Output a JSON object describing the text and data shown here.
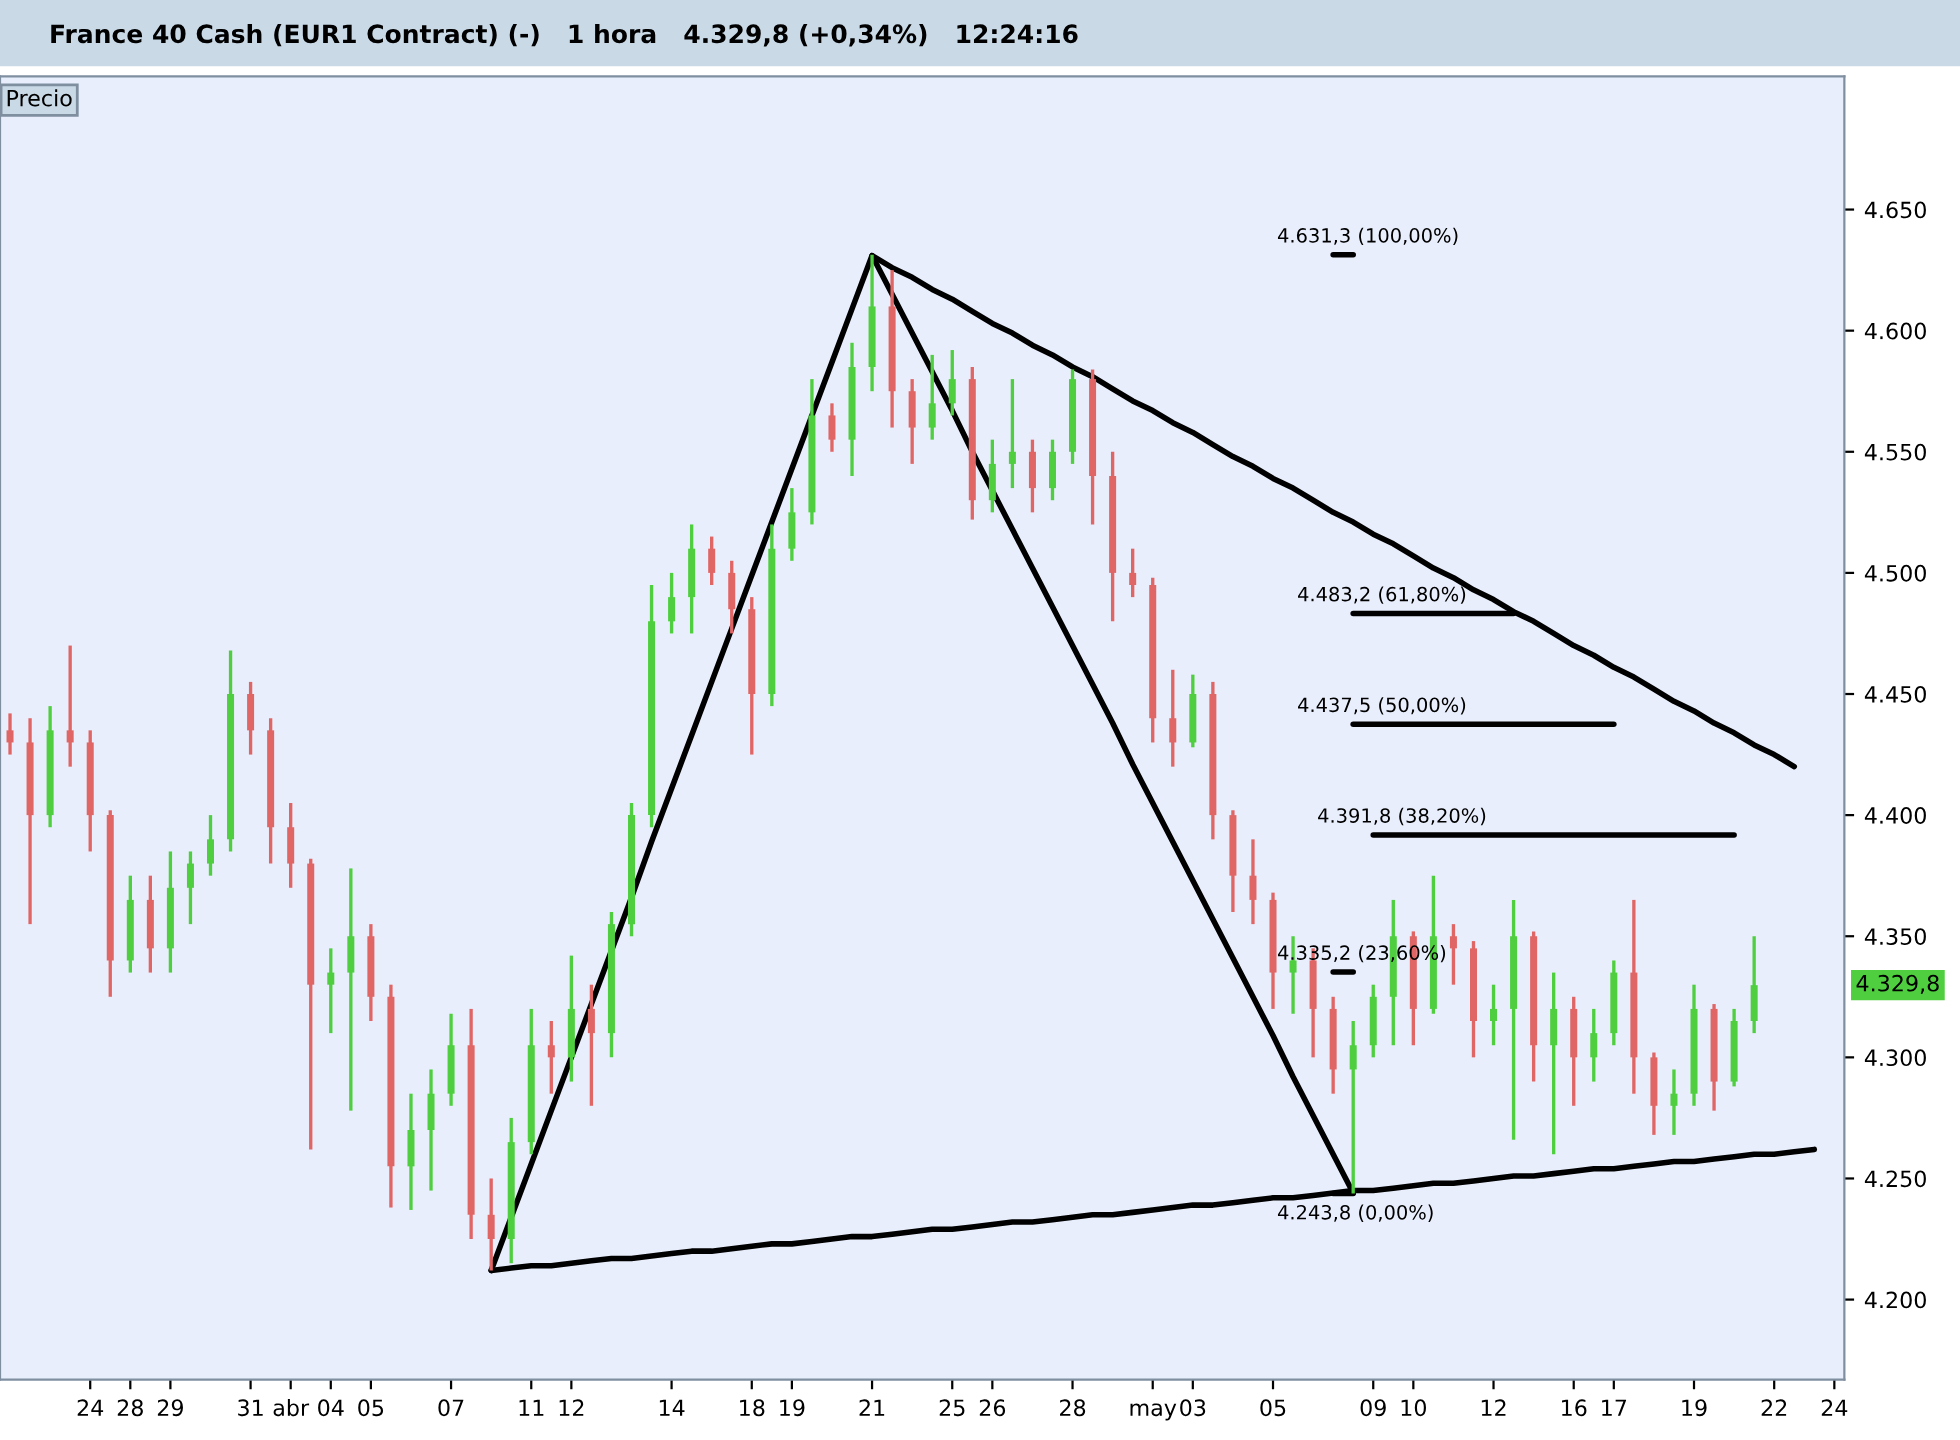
{
  "chart_data": {
    "type": "candlestick",
    "title": "France 40 Cash (EUR1 Contract) (-)   1 hora   4.329,8 (+0,34%)   12:24:16",
    "legend": false,
    "categories": [
      null,
      null,
      null,
      null,
      "24",
      null,
      "28",
      null,
      "29",
      null,
      null,
      null,
      "31",
      null,
      "abr",
      null,
      "04",
      null,
      "05",
      null,
      null,
      null,
      "07",
      null,
      null,
      null,
      "11",
      null,
      "12",
      null,
      null,
      null,
      null,
      "14",
      null,
      null,
      null,
      "18",
      null,
      "19",
      null,
      null,
      null,
      "21",
      null,
      null,
      null,
      "25",
      null,
      "26",
      null,
      null,
      null,
      "28",
      null,
      null,
      null,
      "may",
      null,
      "03",
      null,
      null,
      null,
      "05",
      null,
      null,
      null,
      null,
      "09",
      null,
      "10",
      null,
      null,
      null,
      "12",
      null,
      null,
      null,
      "16",
      null,
      "17",
      null,
      null,
      null,
      "19",
      null,
      null,
      null,
      "22",
      null,
      null,
      "24"
    ],
    "colors": [
      "#e06666",
      "#e06666",
      "#4fcf3f",
      "#e06666",
      "#e06666",
      "#e06666",
      "#4fcf3f",
      "#e06666",
      "#4fcf3f",
      "#4fcf3f",
      "#4fcf3f",
      "#4fcf3f",
      "#e06666",
      "#e06666",
      "#e06666",
      "#e06666",
      "#4fcf3f",
      "#4fcf3f",
      "#e06666",
      "#e06666",
      "#4fcf3f",
      "#4fcf3f",
      "#4fcf3f",
      "#e06666",
      "#e06666",
      "#4fcf3f",
      "#4fcf3f",
      "#e06666",
      "#4fcf3f",
      "#e06666",
      "#4fcf3f",
      "#4fcf3f",
      "#4fcf3f",
      "#4fcf3f",
      "#4fcf3f",
      "#e06666",
      "#e06666",
      "#e06666",
      "#4fcf3f",
      "#4fcf3f",
      "#4fcf3f",
      "#e06666",
      "#4fcf3f",
      "#4fcf3f",
      "#e06666",
      "#e06666",
      "#4fcf3f",
      "#4fcf3f",
      "#e06666",
      "#4fcf3f",
      "#4fcf3f",
      "#e06666",
      "#4fcf3f",
      "#4fcf3f",
      "#e06666",
      "#e06666",
      "#e06666",
      "#e06666",
      "#e06666",
      "#4fcf3f",
      "#e06666",
      "#e06666",
      "#e06666",
      "#e06666",
      "#4fcf3f",
      "#e06666",
      "#e06666",
      "#4fcf3f",
      "#4fcf3f",
      "#4fcf3f",
      "#e06666",
      "#4fcf3f",
      "#e06666",
      "#e06666",
      "#4fcf3f",
      "#4fcf3f",
      "#e06666",
      "#4fcf3f",
      "#e06666",
      "#4fcf3f",
      "#4fcf3f",
      "#e06666",
      "#e06666",
      "#4fcf3f",
      "#4fcf3f",
      "#e06666",
      "#4fcf3f",
      "#4fcf3f",
      null,
      null,
      null,
      null
    ],
    "ohlc": [
      [
        4435,
        4442,
        4425,
        4430
      ],
      [
        4430,
        4440,
        4355,
        4400
      ],
      [
        4400,
        4445,
        4395,
        4435
      ],
      [
        4435,
        4470,
        4420,
        4430
      ],
      [
        4430,
        4435,
        4385,
        4400
      ],
      [
        4400,
        4402,
        4325,
        4340
      ],
      [
        4340,
        4375,
        4335,
        4365
      ],
      [
        4365,
        4375,
        4335,
        4345
      ],
      [
        4345,
        4385,
        4335,
        4370
      ],
      [
        4370,
        4385,
        4355,
        4380
      ],
      [
        4380,
        4400,
        4375,
        4390
      ],
      [
        4390,
        4468,
        4385,
        4450
      ],
      [
        4450,
        4455,
        4425,
        4435
      ],
      [
        4435,
        4440,
        4380,
        4395
      ],
      [
        4395,
        4405,
        4370,
        4380
      ],
      [
        4380,
        4382,
        4262,
        4330
      ],
      [
        4330,
        4345,
        4310,
        4335
      ],
      [
        4335,
        4378,
        4278,
        4350
      ],
      [
        4350,
        4355,
        4315,
        4325
      ],
      [
        4325,
        4330,
        4238,
        4255
      ],
      [
        4255,
        4285,
        4237,
        4270
      ],
      [
        4270,
        4295,
        4245,
        4285
      ],
      [
        4285,
        4318,
        4280,
        4305
      ],
      [
        4305,
        4320,
        4225,
        4235
      ],
      [
        4235,
        4250,
        4212,
        4225
      ],
      [
        4225,
        4275,
        4215,
        4265
      ],
      [
        4265,
        4320,
        4260,
        4305
      ],
      [
        4305,
        4315,
        4285,
        4300
      ],
      [
        4300,
        4342,
        4290,
        4320
      ],
      [
        4320,
        4330,
        4280,
        4310
      ],
      [
        4310,
        4360,
        4300,
        4355
      ],
      [
        4355,
        4405,
        4350,
        4400
      ],
      [
        4400,
        4495,
        4395,
        4480
      ],
      [
        4480,
        4500,
        4475,
        4490
      ],
      [
        4490,
        4520,
        4475,
        4510
      ],
      [
        4510,
        4515,
        4495,
        4500
      ],
      [
        4500,
        4505,
        4475,
        4485
      ],
      [
        4485,
        4490,
        4425,
        4450
      ],
      [
        4450,
        4520,
        4445,
        4510
      ],
      [
        4510,
        4535,
        4505,
        4525
      ],
      [
        4525,
        4580,
        4520,
        4565
      ],
      [
        4565,
        4570,
        4550,
        4555
      ],
      [
        4555,
        4595,
        4540,
        4585
      ],
      [
        4585,
        4631.3,
        4575,
        4610
      ],
      [
        4610,
        4625,
        4560,
        4575
      ],
      [
        4575,
        4580,
        4545,
        4560
      ],
      [
        4560,
        4590,
        4555,
        4570
      ],
      [
        4570,
        4592,
        4565,
        4580
      ],
      [
        4580,
        4585,
        4522,
        4530
      ],
      [
        4530,
        4555,
        4525,
        4545
      ],
      [
        4545,
        4580,
        4535,
        4550
      ],
      [
        4550,
        4555,
        4525,
        4535
      ],
      [
        4535,
        4555,
        4530,
        4550
      ],
      [
        4550,
        4584,
        4545,
        4580
      ],
      [
        4580,
        4584,
        4520,
        4540
      ],
      [
        4540,
        4550,
        4480,
        4500
      ],
      [
        4500,
        4510,
        4490,
        4495
      ],
      [
        4495,
        4498,
        4430,
        4440
      ],
      [
        4440,
        4460,
        4420,
        4430
      ],
      [
        4430,
        4458,
        4428,
        4450
      ],
      [
        4450,
        4455,
        4390,
        4400
      ],
      [
        4400,
        4402,
        4360,
        4375
      ],
      [
        4375,
        4390,
        4355,
        4365
      ],
      [
        4365,
        4368,
        4320,
        4335
      ],
      [
        4335,
        4350,
        4318,
        4340
      ],
      [
        4340,
        4345,
        4300,
        4320
      ],
      [
        4320,
        4325,
        4285,
        4295
      ],
      [
        4295,
        4315,
        4243.8,
        4305
      ],
      [
        4305,
        4330,
        4300,
        4325
      ],
      [
        4325,
        4365,
        4305,
        4350
      ],
      [
        4350,
        4352,
        4305,
        4320
      ],
      [
        4320,
        4375,
        4318,
        4350
      ],
      [
        4350,
        4355,
        4330,
        4345
      ],
      [
        4345,
        4348,
        4300,
        4315
      ],
      [
        4315,
        4330,
        4305,
        4320
      ],
      [
        4320,
        4365,
        4266,
        4350
      ],
      [
        4350,
        4352,
        4290,
        4305
      ],
      [
        4305,
        4335,
        4260,
        4320
      ],
      [
        4320,
        4325,
        4280,
        4300
      ],
      [
        4300,
        4320,
        4290,
        4310
      ],
      [
        4310,
        4340,
        4305,
        4335
      ],
      [
        4335,
        4365,
        4285,
        4300
      ],
      [
        4300,
        4302,
        4268,
        4280
      ],
      [
        4280,
        4295,
        4268,
        4285
      ],
      [
        4285,
        4330,
        4280,
        4320
      ],
      [
        4320,
        4322,
        4278,
        4290
      ],
      [
        4290,
        4320,
        4288,
        4315
      ],
      [
        4315,
        4350,
        4310,
        4329.8
      ],
      null,
      null,
      null,
      null
    ],
    "series": [
      {
        "type": "line",
        "color": "#000000",
        "values": [
          null,
          null,
          null,
          null,
          null,
          null,
          null,
          null,
          null,
          null,
          null,
          null,
          null,
          null,
          null,
          null,
          null,
          null,
          null,
          null,
          null,
          null,
          null,
          null,
          4212,
          4234,
          4256,
          4278,
          4300,
          4322,
          4344,
          4366,
          4389,
          4411,
          4433,
          4455,
          4477,
          4499,
          4521,
          4543,
          4565,
          4587,
          4609,
          4631,
          4615,
          4599,
          4583,
          4567,
          4550,
          4534,
          4518,
          4502,
          4486,
          4470,
          4454,
          4438,
          4421,
          4405,
          4389,
          4373,
          4357,
          4341,
          4325,
          4309,
          4292,
          4276,
          4260,
          4244,
          null,
          null,
          null,
          null,
          null,
          null,
          null,
          null,
          null,
          null,
          null,
          null,
          null,
          null,
          null,
          null,
          null,
          null,
          null,
          null,
          null,
          null,
          null,
          null
        ]
      },
      {
        "type": "line",
        "color": "#000000",
        "values": [
          null,
          null,
          null,
          null,
          null,
          null,
          null,
          null,
          null,
          null,
          null,
          null,
          null,
          null,
          null,
          null,
          null,
          null,
          null,
          null,
          null,
          null,
          null,
          null,
          4212,
          4213,
          4214,
          4214,
          4215,
          4216,
          4217,
          4217,
          4218,
          4219,
          4220,
          4220,
          4221,
          4222,
          4223,
          4223,
          4224,
          4225,
          4226,
          4226,
          4227,
          4228,
          4229,
          4229,
          4230,
          4231,
          4232,
          4232,
          4233,
          4234,
          4235,
          4235,
          4236,
          4237,
          4238,
          4239,
          4239,
          4240,
          4241,
          4242,
          4242,
          4243,
          4244,
          4245,
          4245,
          4246,
          4247,
          4248,
          4248,
          4249,
          4250,
          4251,
          4251,
          4252,
          4253,
          4254,
          4254,
          4255,
          4256,
          4257,
          4257,
          4258,
          4259,
          4260,
          4260,
          4261,
          4262,
          null
        ]
      },
      {
        "type": "line",
        "color": "#000000",
        "values": [
          null,
          null,
          null,
          null,
          null,
          null,
          null,
          null,
          null,
          null,
          null,
          null,
          null,
          null,
          null,
          null,
          null,
          null,
          null,
          null,
          null,
          null,
          null,
          null,
          null,
          null,
          null,
          null,
          null,
          null,
          null,
          null,
          null,
          null,
          null,
          null,
          null,
          null,
          null,
          null,
          null,
          null,
          null,
          4631,
          4626,
          4622,
          4617,
          4613,
          4608,
          4603,
          4599,
          4594,
          4590,
          4585,
          4581,
          4576,
          4571,
          4567,
          4562,
          4558,
          4553,
          4548,
          4544,
          4539,
          4535,
          4530,
          4525,
          4521,
          4516,
          4512,
          4507,
          4502,
          4498,
          4493,
          4489,
          4484,
          4480,
          4475,
          4470,
          4466,
          4461,
          4457,
          4452,
          4447,
          4443,
          4438,
          4434,
          4429,
          4425,
          4420,
          null,
          null
        ]
      },
      {
        "type": "line",
        "color": "#000000",
        "name": "4.631,3 (100,00%)",
        "values": [
          null,
          null,
          null,
          null,
          null,
          null,
          null,
          null,
          null,
          null,
          null,
          null,
          null,
          null,
          null,
          null,
          null,
          null,
          null,
          null,
          null,
          null,
          null,
          null,
          null,
          null,
          null,
          null,
          null,
          null,
          null,
          null,
          null,
          null,
          null,
          null,
          null,
          null,
          null,
          null,
          null,
          null,
          null,
          null,
          null,
          null,
          null,
          null,
          null,
          null,
          null,
          null,
          null,
          null,
          null,
          null,
          null,
          null,
          null,
          null,
          null,
          null,
          null,
          null,
          null,
          null,
          4631.3,
          4631.3,
          null,
          null,
          null,
          null,
          null,
          null,
          null,
          null,
          null,
          null,
          null,
          null,
          null,
          null,
          null,
          null,
          null,
          null,
          null,
          null,
          null,
          null,
          null,
          null
        ]
      },
      {
        "type": "line",
        "color": "#000000",
        "name": "4.483,2 (61,80%)",
        "values": [
          null,
          null,
          null,
          null,
          null,
          null,
          null,
          null,
          null,
          null,
          null,
          null,
          null,
          null,
          null,
          null,
          null,
          null,
          null,
          null,
          null,
          null,
          null,
          null,
          null,
          null,
          null,
          null,
          null,
          null,
          null,
          null,
          null,
          null,
          null,
          null,
          null,
          null,
          null,
          null,
          null,
          null,
          null,
          null,
          null,
          null,
          null,
          null,
          null,
          null,
          null,
          null,
          null,
          null,
          null,
          null,
          null,
          null,
          null,
          null,
          null,
          null,
          null,
          null,
          null,
          null,
          null,
          4483.2,
          4483.2,
          4483.2,
          4483.2,
          4483.2,
          4483.2,
          4483.2,
          4483.2,
          4483.2,
          null,
          null,
          null,
          null,
          null,
          null,
          null,
          null,
          null,
          null,
          null,
          null,
          null,
          null,
          null,
          null
        ]
      },
      {
        "type": "line",
        "color": "#000000",
        "name": "4.437,5 (50,00%)",
        "values": [
          null,
          null,
          null,
          null,
          null,
          null,
          null,
          null,
          null,
          null,
          null,
          null,
          null,
          null,
          null,
          null,
          null,
          null,
          null,
          null,
          null,
          null,
          null,
          null,
          null,
          null,
          null,
          null,
          null,
          null,
          null,
          null,
          null,
          null,
          null,
          null,
          null,
          null,
          null,
          null,
          null,
          null,
          null,
          null,
          null,
          null,
          null,
          null,
          null,
          null,
          null,
          null,
          null,
          null,
          null,
          null,
          null,
          null,
          null,
          null,
          null,
          null,
          null,
          null,
          null,
          null,
          null,
          4437.5,
          4437.5,
          4437.5,
          4437.5,
          4437.5,
          4437.5,
          4437.5,
          4437.5,
          4437.5,
          4437.5,
          4437.5,
          4437.5,
          4437.5,
          4437.5,
          null,
          null,
          null,
          null,
          null,
          null,
          null,
          null,
          null,
          null,
          null
        ]
      },
      {
        "type": "line",
        "color": "#000000",
        "name": "4.391,8 (38,20%)",
        "values": [
          null,
          null,
          null,
          null,
          null,
          null,
          null,
          null,
          null,
          null,
          null,
          null,
          null,
          null,
          null,
          null,
          null,
          null,
          null,
          null,
          null,
          null,
          null,
          null,
          null,
          null,
          null,
          null,
          null,
          null,
          null,
          null,
          null,
          null,
          null,
          null,
          null,
          null,
          null,
          null,
          null,
          null,
          null,
          null,
          null,
          null,
          null,
          null,
          null,
          null,
          null,
          null,
          null,
          null,
          null,
          null,
          null,
          null,
          null,
          null,
          null,
          null,
          null,
          null,
          null,
          null,
          null,
          null,
          4391.8,
          4391.8,
          4391.8,
          4391.8,
          4391.8,
          4391.8,
          4391.8,
          4391.8,
          4391.8,
          4391.8,
          4391.8,
          4391.8,
          4391.8,
          4391.8,
          4391.8,
          4391.8,
          4391.8,
          4391.8,
          4391.8,
          null,
          null,
          null,
          null,
          null
        ]
      },
      {
        "type": "line",
        "color": "#000000",
        "name": "4.335,2 (23,60%)",
        "values": [
          null,
          null,
          null,
          null,
          null,
          null,
          null,
          null,
          null,
          null,
          null,
          null,
          null,
          null,
          null,
          null,
          null,
          null,
          null,
          null,
          null,
          null,
          null,
          null,
          null,
          null,
          null,
          null,
          null,
          null,
          null,
          null,
          null,
          null,
          null,
          null,
          null,
          null,
          null,
          null,
          null,
          null,
          null,
          null,
          null,
          null,
          null,
          null,
          null,
          null,
          null,
          null,
          null,
          null,
          null,
          null,
          null,
          null,
          null,
          null,
          null,
          null,
          null,
          null,
          null,
          null,
          4335.2,
          4335.2,
          null,
          null,
          null,
          null,
          null,
          null,
          null,
          null,
          null,
          null,
          null,
          null,
          null,
          null,
          null,
          null,
          null,
          null,
          null,
          null,
          null,
          null,
          null,
          null
        ]
      },
      {
        "type": "line",
        "color": "#000000",
        "name": "4.243,8 (0,00%)",
        "values": [
          null,
          null,
          null,
          null,
          null,
          null,
          null,
          null,
          null,
          null,
          null,
          null,
          null,
          null,
          null,
          null,
          null,
          null,
          null,
          null,
          null,
          null,
          null,
          null,
          null,
          null,
          null,
          null,
          null,
          null,
          null,
          null,
          null,
          null,
          null,
          null,
          null,
          null,
          null,
          null,
          null,
          null,
          null,
          null,
          null,
          null,
          null,
          null,
          null,
          null,
          null,
          null,
          null,
          null,
          null,
          null,
          null,
          null,
          null,
          null,
          null,
          null,
          null,
          null,
          null,
          null,
          4243.8,
          4243.8,
          null,
          null,
          null,
          null,
          null,
          null,
          null,
          null,
          null,
          null,
          null,
          null,
          null,
          null,
          null,
          null,
          null,
          null,
          null,
          null,
          null,
          null,
          null,
          null
        ]
      }
    ],
    "annotations": [
      "Precio",
      "4.329,8"
    ],
    "ylim": [
      4167,
      4705
    ],
    "yticks": [
      {
        "value": 4200,
        "label": "4.200"
      },
      {
        "value": 4250,
        "label": "4.250"
      },
      {
        "value": 4300,
        "label": "4.300"
      },
      {
        "value": 4350,
        "label": "4.350"
      },
      {
        "value": 4400,
        "label": "4.400"
      },
      {
        "value": 4450,
        "label": "4.450"
      },
      {
        "value": 4500,
        "label": "4.500"
      },
      {
        "value": 4550,
        "label": "4.550"
      },
      {
        "value": 4600,
        "label": "4.600"
      },
      {
        "value": 4650,
        "label": "4.650"
      }
    ]
  }
}
